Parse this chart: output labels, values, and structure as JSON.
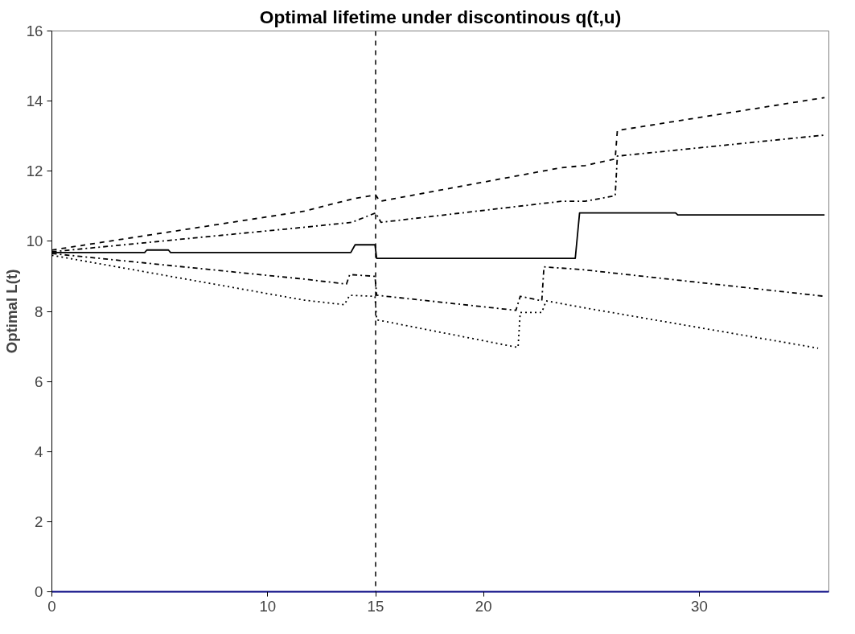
{
  "chart_data": {
    "type": "line",
    "title": "Optimal lifetime under discontinous q(t,u)",
    "ylabel": "Optimal L(t)",
    "xlim": [
      0,
      36
    ],
    "xticks": [
      0,
      10,
      15,
      20,
      30
    ],
    "ylim": [
      0,
      16
    ],
    "yticks": [
      0,
      2,
      4,
      6,
      8,
      10,
      12,
      14,
      16
    ],
    "grid": false,
    "marker": "none",
    "ref_lines": [
      {
        "axis": "x",
        "value": 15,
        "color": "#000000",
        "line_style": "dashed"
      }
    ],
    "series": [
      {
        "color": "#000000",
        "line_style": "dashed",
        "x": [
          0,
          11.7,
          14,
          15,
          15.2,
          23.6,
          24.7,
          26.1,
          26.2,
          35.8
        ],
        "values": [
          9.75,
          10.86,
          11.22,
          11.32,
          11.14,
          12.1,
          12.16,
          12.35,
          13.16,
          14.1
        ]
      },
      {
        "color": "#000000",
        "line_style": "dashdot",
        "x": [
          0,
          11.7,
          13.9,
          15,
          15.25,
          23.6,
          24.7,
          26.1,
          26.2,
          35.8
        ],
        "values": [
          9.7,
          10.4,
          10.54,
          10.81,
          10.54,
          11.14,
          11.14,
          11.3,
          12.43,
          13.03
        ]
      },
      {
        "color": "#000000",
        "line_style": "solid",
        "x": [
          0,
          4.3,
          4.4,
          5.4,
          5.5,
          13.85,
          14.05,
          14.97,
          15.05,
          24.25,
          24.45,
          28.9,
          29.0,
          35.8
        ],
        "values": [
          9.68,
          9.68,
          9.75,
          9.75,
          9.68,
          9.68,
          9.9,
          9.9,
          9.51,
          9.51,
          10.81,
          10.81,
          10.75,
          10.75
        ]
      },
      {
        "color": "#000000",
        "line_style": "dashdot",
        "x": [
          0,
          11.7,
          13.65,
          13.8,
          14.97,
          15.05,
          21.5,
          21.7,
          22.7,
          22.8,
          24.6,
          35.8
        ],
        "values": [
          9.65,
          8.92,
          8.78,
          9.05,
          9.0,
          8.46,
          8.03,
          8.43,
          8.3,
          9.27,
          9.19,
          8.43
        ]
      },
      {
        "color": "#000000",
        "line_style": "dotted",
        "x": [
          0,
          11.7,
          13.55,
          13.8,
          14.97,
          15.05,
          21.6,
          21.7,
          22.7,
          22.9,
          24.6,
          35.5
        ],
        "values": [
          9.6,
          8.32,
          8.19,
          8.46,
          8.43,
          7.76,
          6.97,
          7.97,
          7.97,
          8.3,
          8.11,
          6.95
        ]
      }
    ]
  }
}
